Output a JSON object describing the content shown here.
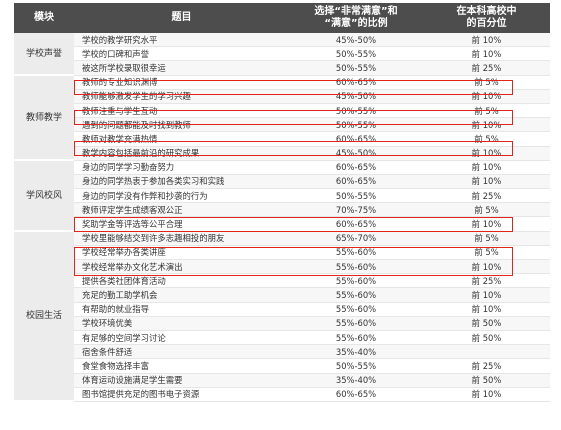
{
  "headers": {
    "category": "模块",
    "item": "题目",
    "satisfaction_line1": "选择“非常满意”和",
    "satisfaction_line2": "“满意”的比例",
    "percentile_line1": "在本科高校中",
    "percentile_line2": "的百分位"
  },
  "categories": [
    "学校声誉",
    "教师教学",
    "学风校风",
    "校园生活"
  ],
  "rows": [
    {
      "item": "学校的教学研究水平",
      "pct": "45%-50%",
      "rank": "前 10%"
    },
    {
      "item": "学校的口碑和声誉",
      "pct": "50%-55%",
      "rank": "前 10%"
    },
    {
      "item": "被这所学校录取很幸运",
      "pct": "50%-55%",
      "rank": "前 25%"
    },
    {
      "item": "教师的专业知识渊博",
      "pct": "60%-65%",
      "rank": "前 5%"
    },
    {
      "item": "教师能够激发学生的学习兴趣",
      "pct": "45%-50%",
      "rank": "前 10%"
    },
    {
      "item": "教师注重与学生互动",
      "pct": "50%-55%",
      "rank": "前 5%"
    },
    {
      "item": "遇到的问题都能及时找到教师",
      "pct": "50%-55%",
      "rank": "前 10%"
    },
    {
      "item": "教师对教学充满热情",
      "pct": "60%-65%",
      "rank": "前 5%"
    },
    {
      "item": "教学内容包括最前沿的研究成果",
      "pct": "45%-50%",
      "rank": "前 10%"
    },
    {
      "item": "身边的同学学习勤奋努力",
      "pct": "60%-65%",
      "rank": "前 10%"
    },
    {
      "item": "身边的同学热衷于参加各类实习和实践",
      "pct": "60%-65%",
      "rank": "前 10%"
    },
    {
      "item": "身边的同学没有作弊和抄袭的行为",
      "pct": "50%-55%",
      "rank": "前 25%"
    },
    {
      "item": "教师评定学生成绩客观公正",
      "pct": "70%-75%",
      "rank": "前 5%"
    },
    {
      "item": "奖助学金等评选等公平合理",
      "pct": "60%-65%",
      "rank": "前 10%"
    },
    {
      "item": "学校里能够结交到许多志趣相投的朋友",
      "pct": "65%-70%",
      "rank": "前 5%"
    },
    {
      "item": "学校经常举办各类讲座",
      "pct": "55%-60%",
      "rank": "前 5%"
    },
    {
      "item": "学校经常举办文化艺术演出",
      "pct": "55%-60%",
      "rank": "前 10%"
    },
    {
      "item": "提供各类社团体育活动",
      "pct": "55%-60%",
      "rank": "前 25%"
    },
    {
      "item": "充足的勤工助学机会",
      "pct": "55%-60%",
      "rank": "前 10%"
    },
    {
      "item": "有帮助的就业指导",
      "pct": "55%-60%",
      "rank": "前 10%"
    },
    {
      "item": "学校环境优美",
      "pct": "55%-60%",
      "rank": "前 50%"
    },
    {
      "item": "有足够的空间学习讨论",
      "pct": "55%-60%",
      "rank": "前 50%"
    },
    {
      "item": "宿舍条件舒适",
      "pct": "35%-40%",
      "rank": ""
    },
    {
      "item": "食堂食物选择丰富",
      "pct": "50%-55%",
      "rank": "前 25%"
    },
    {
      "item": "体育运动设施满足学生需要",
      "pct": "35%-40%",
      "rank": "前 50%"
    },
    {
      "item": "图书馆提供充足的图书电子资源",
      "pct": "60%-65%",
      "rank": "前 10%"
    }
  ]
}
